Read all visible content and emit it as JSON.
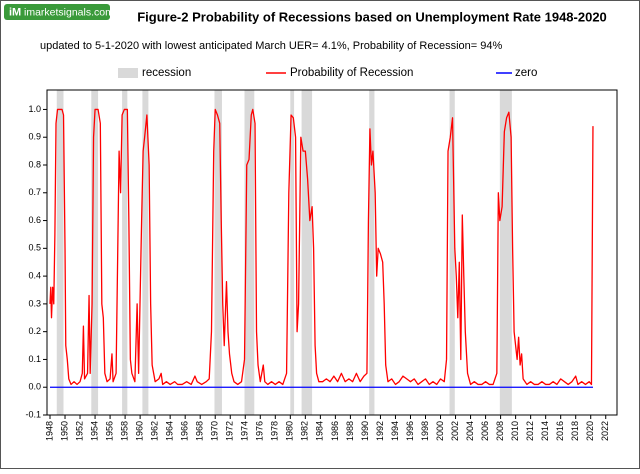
{
  "chart_data": {
    "type": "line",
    "logo_icon": "iM",
    "logo": "imarketsignals.com",
    "title": "Figure-2  Probability  of Recessions based on Unemployment Rate 1948-2020",
    "subtitle": "updated to 5-1-2020 with lowest anticipated March UER= 4.1%,  Probability of Recession= 94%",
    "recession": {
      "name": "recession",
      "color": "#d9d9d9",
      "periods": [
        [
          1948.9,
          1949.8
        ],
        [
          1953.5,
          1954.4
        ],
        [
          1957.6,
          1958.3
        ],
        [
          1960.3,
          1961.1
        ],
        [
          1969.9,
          1970.9
        ],
        [
          1973.9,
          1975.2
        ],
        [
          1980.0,
          1980.5
        ],
        [
          1981.5,
          1982.9
        ],
        [
          1990.5,
          1991.2
        ],
        [
          2001.2,
          2001.9
        ],
        [
          2007.9,
          2009.5
        ]
      ]
    },
    "series": [
      {
        "name": "Probability of Recession",
        "color": "#ff0000",
        "x": [
          1948.0,
          1948.1,
          1948.2,
          1948.35,
          1948.5,
          1948.65,
          1948.8,
          1949.0,
          1949.3,
          1949.6,
          1949.8,
          1950.0,
          1950.1,
          1950.3,
          1950.5,
          1950.8,
          1951.2,
          1951.6,
          1952.0,
          1952.3,
          1952.45,
          1952.6,
          1953.0,
          1953.2,
          1953.35,
          1953.6,
          1953.8,
          1954.0,
          1954.4,
          1954.7,
          1954.9,
          1955.1,
          1955.3,
          1955.6,
          1956.0,
          1956.25,
          1956.4,
          1956.8,
          1957.2,
          1957.4,
          1957.6,
          1957.9,
          1958.3,
          1958.5,
          1958.7,
          1958.9,
          1959.3,
          1959.6,
          1959.8,
          1960.2,
          1960.4,
          1960.6,
          1960.9,
          1961.2,
          1961.4,
          1961.6,
          1962.0,
          1962.5,
          1962.8,
          1963.0,
          1963.5,
          1964.0,
          1964.6,
          1965.0,
          1965.6,
          1966.2,
          1966.8,
          1967.3,
          1967.6,
          1968.2,
          1968.8,
          1969.2,
          1969.5,
          1969.8,
          1970.0,
          1970.3,
          1970.6,
          1970.8,
          1971.0,
          1971.2,
          1971.5,
          1971.7,
          1971.9,
          1972.2,
          1972.5,
          1973.0,
          1973.5,
          1973.9,
          1974.2,
          1974.5,
          1974.8,
          1975.0,
          1975.3,
          1975.5,
          1975.7,
          1976.0,
          1976.4,
          1976.6,
          1977.0,
          1977.5,
          1978.0,
          1978.5,
          1979.0,
          1979.5,
          1979.8,
          1980.1,
          1980.4,
          1980.7,
          1980.9,
          1981.1,
          1981.4,
          1981.7,
          1982.0,
          1982.3,
          1982.6,
          1982.9,
          1983.1,
          1983.3,
          1983.5,
          1983.8,
          1984.3,
          1984.8,
          1985.3,
          1985.8,
          1986.3,
          1986.8,
          1987.3,
          1987.8,
          1988.3,
          1988.8,
          1989.3,
          1989.8,
          1990.2,
          1990.4,
          1990.6,
          1990.8,
          1991.0,
          1991.3,
          1991.5,
          1991.7,
          1992.0,
          1992.3,
          1992.5,
          1992.7,
          1993.0,
          1993.5,
          1994.0,
          1994.5,
          1995.0,
          1995.5,
          1996.0,
          1996.5,
          1997.0,
          1997.5,
          1998.0,
          1998.5,
          1999.0,
          1999.5,
          2000.0,
          2000.5,
          2000.8,
          2001.0,
          2001.3,
          2001.6,
          2001.9,
          2002.1,
          2002.3,
          2002.5,
          2002.7,
          2002.9,
          2003.1,
          2003.3,
          2003.6,
          2004.0,
          2004.5,
          2005.0,
          2005.5,
          2006.0,
          2006.5,
          2007.0,
          2007.5,
          2007.7,
          2007.9,
          2008.2,
          2008.5,
          2008.8,
          2009.1,
          2009.4,
          2009.6,
          2009.8,
          2010.0,
          2010.2,
          2010.4,
          2010.6,
          2010.8,
          2011.0,
          2011.5,
          2012.0,
          2012.5,
          2013.0,
          2013.5,
          2014.0,
          2014.5,
          2015.0,
          2015.5,
          2016.0,
          2016.5,
          2017.0,
          2017.5,
          2018.0,
          2018.3,
          2018.8,
          2019.3,
          2019.8,
          2020.1,
          2020.3
        ],
        "values": [
          0.3,
          0.36,
          0.25,
          0.36,
          0.3,
          0.55,
          0.95,
          1.0,
          1.0,
          1.0,
          0.98,
          0.5,
          0.15,
          0.1,
          0.03,
          0.01,
          0.02,
          0.01,
          0.02,
          0.05,
          0.22,
          0.03,
          0.05,
          0.33,
          0.05,
          0.3,
          0.9,
          1.0,
          1.0,
          0.95,
          0.3,
          0.25,
          0.05,
          0.02,
          0.03,
          0.12,
          0.02,
          0.05,
          0.85,
          0.7,
          0.98,
          1.0,
          1.0,
          0.6,
          0.1,
          0.05,
          0.02,
          0.3,
          0.05,
          0.6,
          0.85,
          0.9,
          0.98,
          0.8,
          0.3,
          0.08,
          0.02,
          0.03,
          0.05,
          0.01,
          0.02,
          0.01,
          0.02,
          0.01,
          0.01,
          0.02,
          0.01,
          0.04,
          0.02,
          0.01,
          0.02,
          0.03,
          0.2,
          0.85,
          1.0,
          0.98,
          0.95,
          0.6,
          0.3,
          0.15,
          0.38,
          0.2,
          0.12,
          0.05,
          0.02,
          0.01,
          0.02,
          0.1,
          0.8,
          0.82,
          0.98,
          1.0,
          0.95,
          0.2,
          0.08,
          0.02,
          0.08,
          0.02,
          0.01,
          0.02,
          0.01,
          0.02,
          0.01,
          0.05,
          0.7,
          0.98,
          0.97,
          0.9,
          0.2,
          0.3,
          0.9,
          0.85,
          0.85,
          0.75,
          0.6,
          0.65,
          0.5,
          0.15,
          0.05,
          0.02,
          0.02,
          0.03,
          0.02,
          0.04,
          0.02,
          0.05,
          0.02,
          0.03,
          0.02,
          0.05,
          0.02,
          0.04,
          0.05,
          0.6,
          0.93,
          0.8,
          0.85,
          0.7,
          0.4,
          0.5,
          0.48,
          0.45,
          0.3,
          0.08,
          0.02,
          0.03,
          0.01,
          0.02,
          0.04,
          0.03,
          0.02,
          0.03,
          0.01,
          0.02,
          0.03,
          0.01,
          0.02,
          0.01,
          0.03,
          0.02,
          0.1,
          0.85,
          0.9,
          0.97,
          0.5,
          0.4,
          0.25,
          0.45,
          0.1,
          0.62,
          0.4,
          0.2,
          0.05,
          0.01,
          0.02,
          0.01,
          0.01,
          0.02,
          0.01,
          0.01,
          0.05,
          0.7,
          0.6,
          0.65,
          0.92,
          0.97,
          0.99,
          0.9,
          0.5,
          0.2,
          0.15,
          0.1,
          0.18,
          0.08,
          0.12,
          0.03,
          0.01,
          0.02,
          0.01,
          0.01,
          0.02,
          0.01,
          0.01,
          0.02,
          0.01,
          0.03,
          0.02,
          0.01,
          0.02,
          0.04,
          0.01,
          0.02,
          0.01,
          0.02,
          0.01,
          0.94
        ]
      },
      {
        "name": "zero",
        "color": "#0000ff",
        "x": [
          1948.0,
          2020.3
        ],
        "values": [
          0,
          0
        ]
      }
    ],
    "xlim": [
      1947.6,
      2023.5
    ],
    "ylim": [
      -0.1,
      1.07
    ],
    "xticks": [
      1948,
      1950,
      1952,
      1954,
      1956,
      1958,
      1960,
      1962,
      1964,
      1966,
      1968,
      1970,
      1972,
      1974,
      1976,
      1978,
      1980,
      1982,
      1984,
      1986,
      1988,
      1990,
      1992,
      1994,
      1996,
      1998,
      2000,
      2002,
      2004,
      2006,
      2008,
      2010,
      2012,
      2014,
      2016,
      2018,
      2020,
      2022
    ],
    "yticks": [
      {
        "value": 1,
        "label": "1.0"
      },
      0.9,
      0.8,
      0.7,
      0.6,
      0.5,
      0.4,
      0.3,
      0.2,
      0.1,
      {
        "value": 0,
        "label": "0.0"
      },
      -0.1
    ],
    "grid": false
  }
}
